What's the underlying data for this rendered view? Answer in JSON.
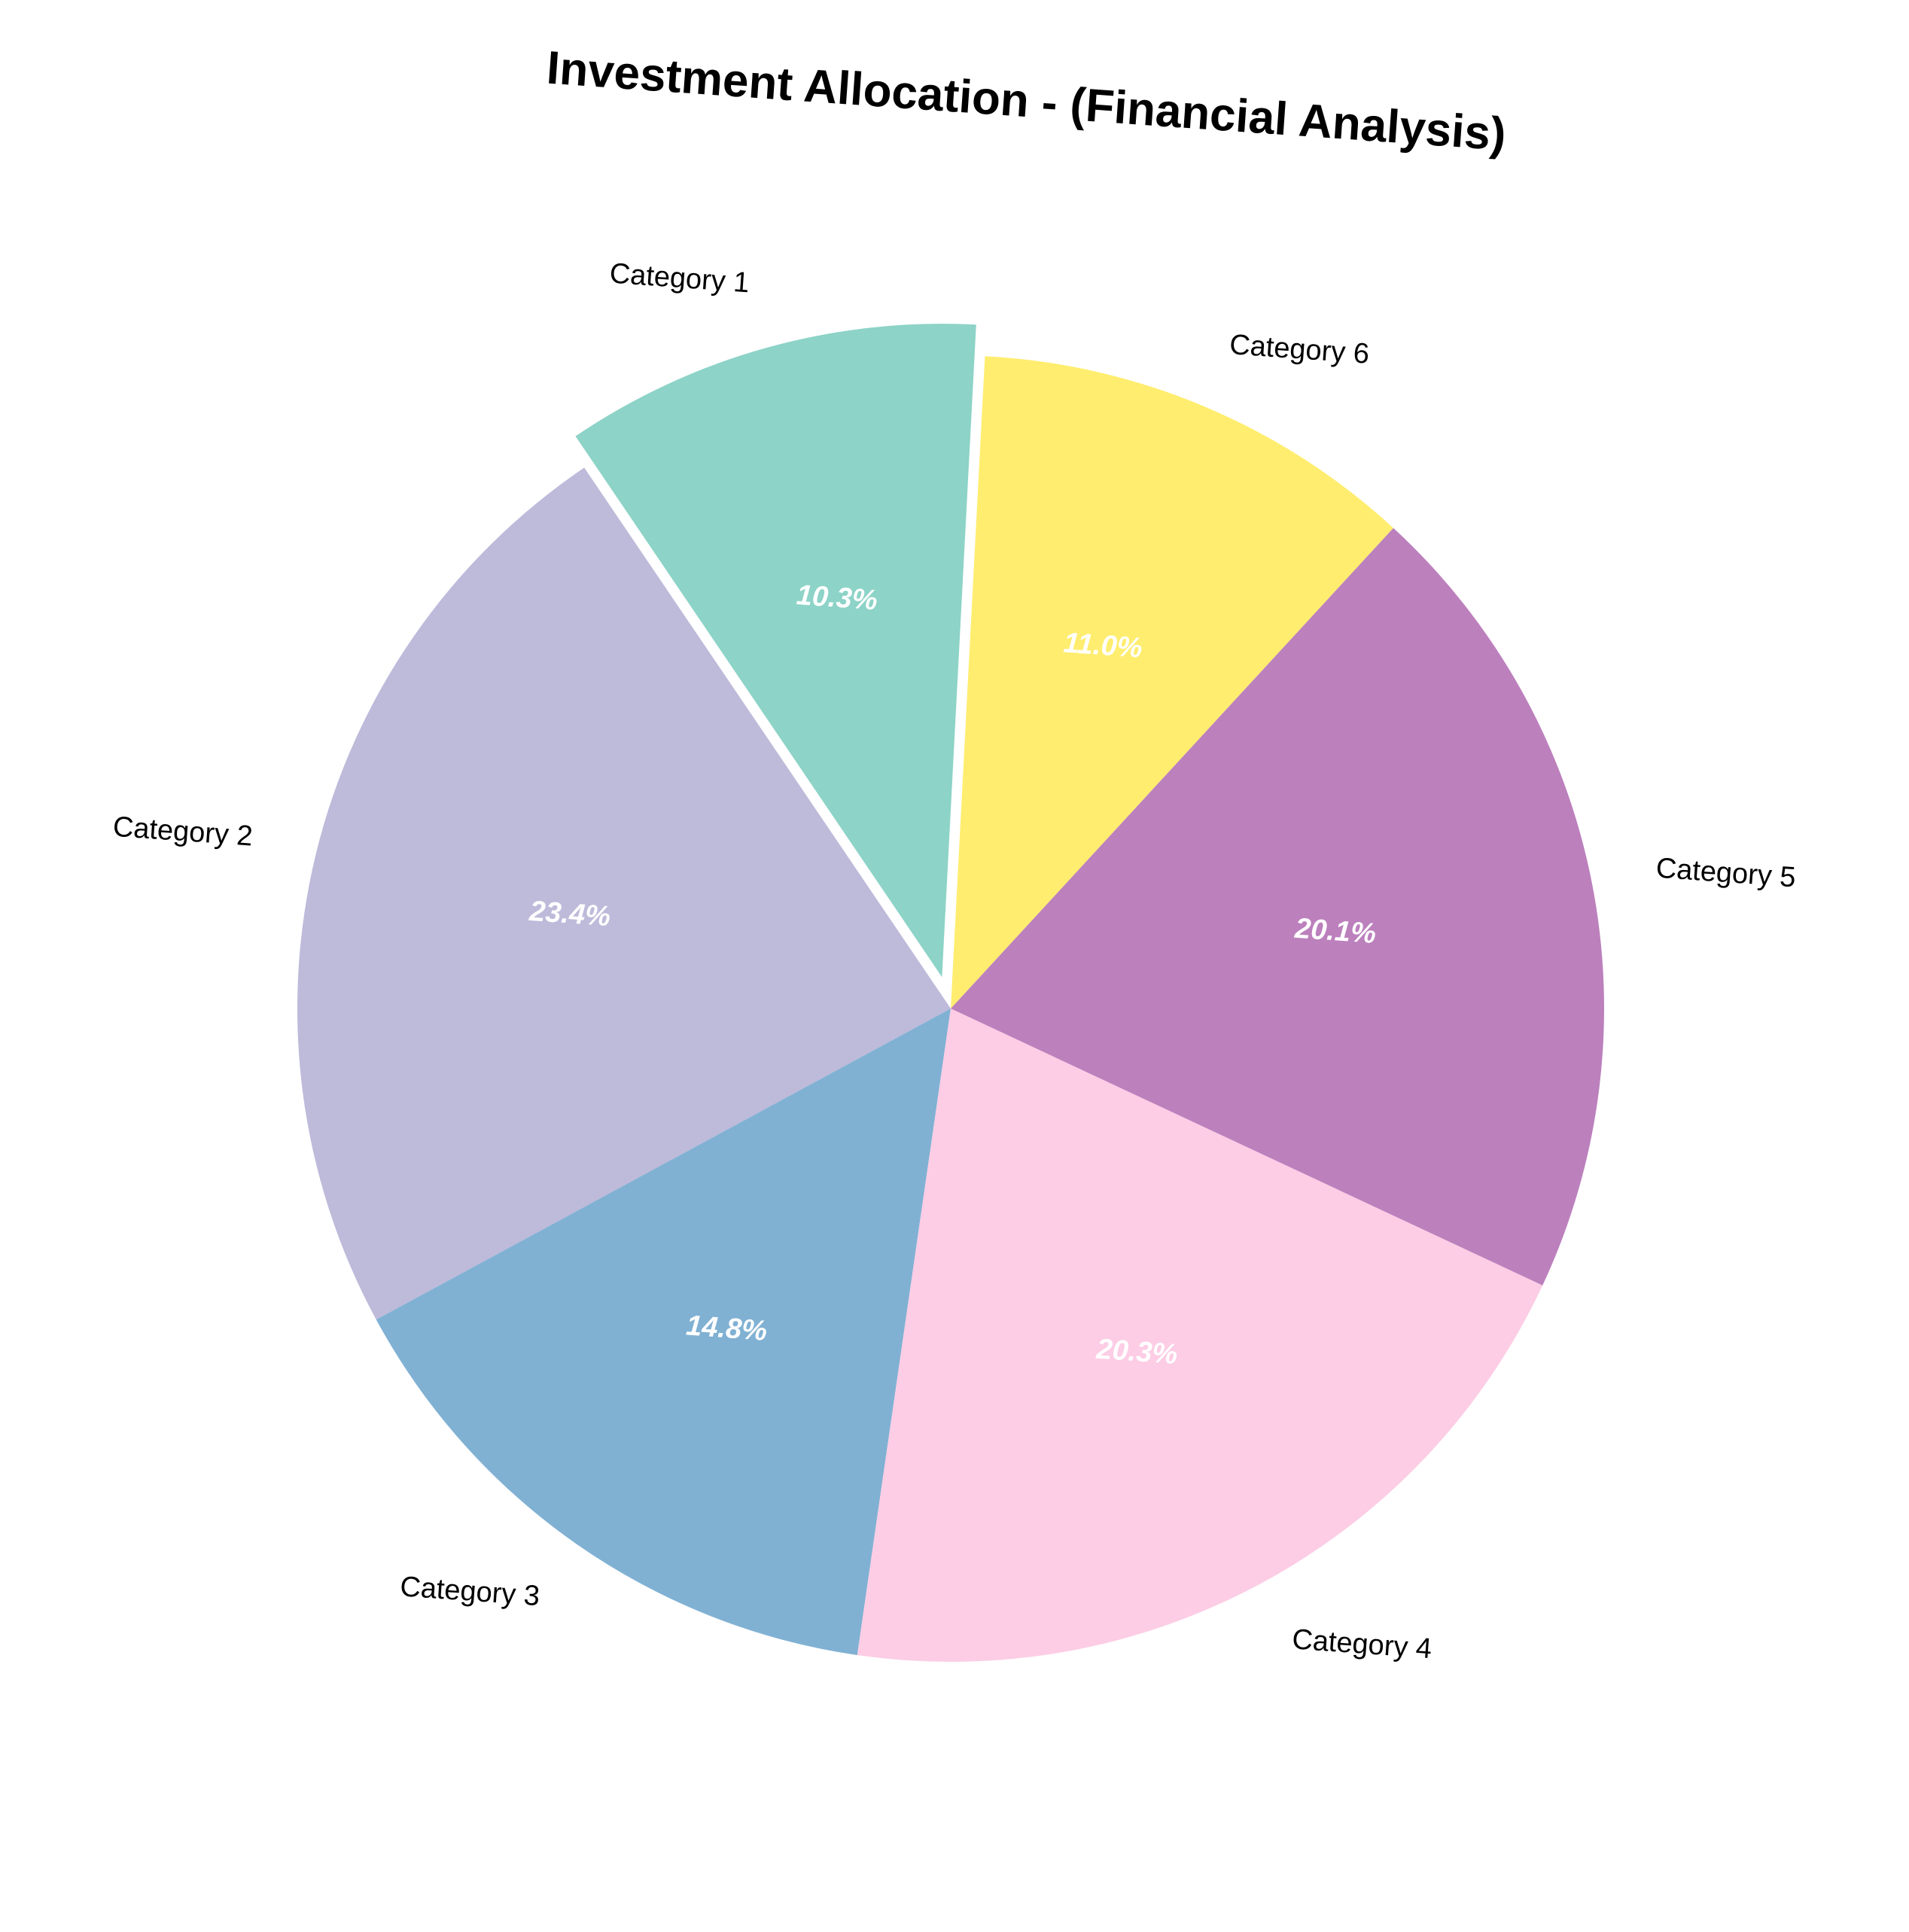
{
  "chart_data": {
    "type": "pie",
    "title": "Investment Allocation - (Financial Analysis)",
    "categories": [
      "Category 1",
      "Category 2",
      "Category 3",
      "Category 4",
      "Category 5",
      "Category 6"
    ],
    "values": [
      10.3,
      23.4,
      14.8,
      20.3,
      20.1,
      11.0
    ],
    "percent_labels": [
      "10.3%",
      "23.4%",
      "14.8%",
      "20.3%",
      "20.1%",
      "11.0%"
    ],
    "colors": [
      "#8dd3c7",
      "#bebada",
      "#80b1d3",
      "#fccde5",
      "#bc80bd",
      "#ffed6f"
    ],
    "explode": [
      0.05,
      0,
      0,
      0,
      0,
      0
    ],
    "direction": "counterclockwise",
    "legend": "none"
  }
}
